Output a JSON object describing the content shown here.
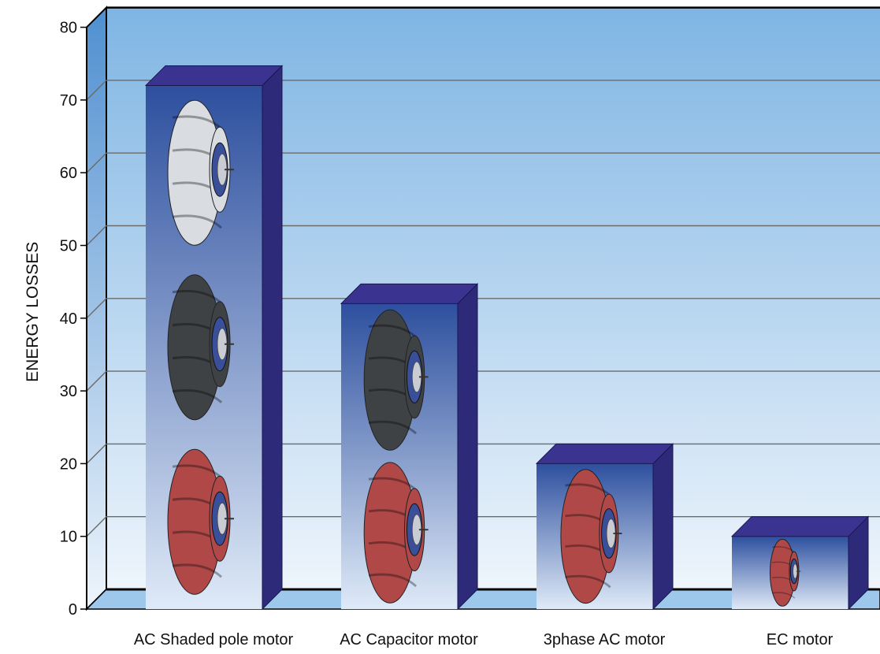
{
  "chart_data": {
    "type": "bar",
    "title": "",
    "xlabel": "",
    "ylabel": "ENERGY LOSSES",
    "categories": [
      "AC Shaded pole motor",
      "AC Capacitor motor",
      "3phase AC motor",
      "EC motor"
    ],
    "values": [
      72,
      42,
      20,
      10
    ],
    "ylim": [
      0,
      80
    ],
    "yticks": [
      "0",
      "10",
      "20",
      "30",
      "40",
      "50",
      "60",
      "70",
      "80"
    ],
    "grid": true,
    "bar_contents": [
      [
        "light-impeller-icon",
        "dark-impeller-icon",
        "red-impeller-icon"
      ],
      [
        "dark-impeller-icon",
        "red-impeller-icon"
      ],
      [
        "red-impeller-icon"
      ],
      [
        "red-impeller-icon"
      ]
    ],
    "colors": {
      "bar_side": "#2e2a7a",
      "bar_top": "#3a3490",
      "bar_face_top": "#2d4f9e",
      "bar_face_bottom": "#dfeaf8",
      "background_top": "#7fb5e3",
      "background_bottom": "#eef5fc",
      "wall": "#4f8fd0",
      "floor": "#9ec7ec",
      "grid": "#6b6b6b",
      "impeller_red": "#b04848",
      "impeller_dark": "#3f4245",
      "impeller_light": "#d9dde2",
      "hub": "#3a4f9a"
    }
  }
}
